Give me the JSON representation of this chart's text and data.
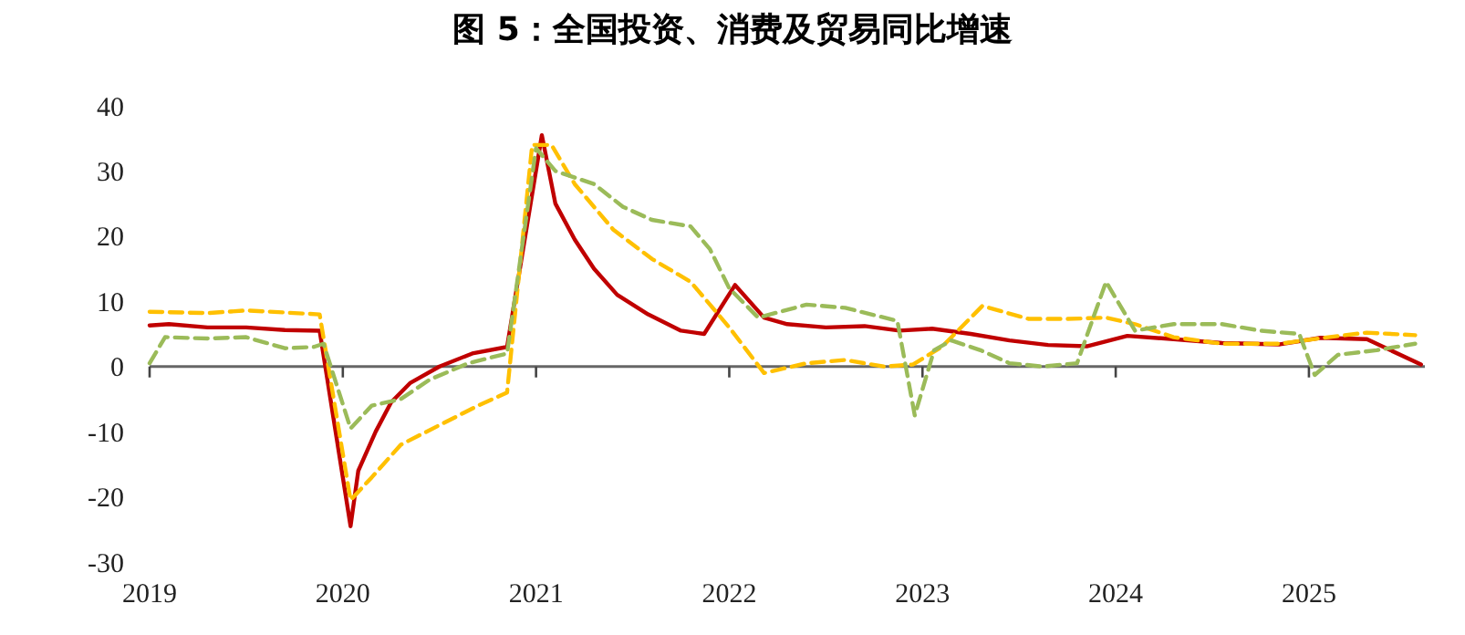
{
  "chart_data": {
    "type": "line",
    "title": "图 5：全国投资、消费及贸易同比增速",
    "xlim": [
      2019,
      2025.6
    ],
    "xticks": [
      2019,
      2020,
      2021,
      2022,
      2023,
      2024,
      2025
    ],
    "ylim": [
      -30,
      40
    ],
    "yticks": [
      -30,
      -20,
      -10,
      0,
      10,
      20,
      30,
      40
    ],
    "series": [
      {
        "color": "#c00000",
        "line_style": "solid",
        "x": [
          2019.0,
          2019.1,
          2019.3,
          2019.5,
          2019.7,
          2019.88,
          2020.04,
          2020.08,
          2020.17,
          2020.25,
          2020.35,
          2020.5,
          2020.67,
          2020.85,
          2021.03,
          2021.1,
          2021.2,
          2021.3,
          2021.42,
          2021.58,
          2021.75,
          2021.87,
          2022.03,
          2022.18,
          2022.3,
          2022.5,
          2022.7,
          2022.88,
          2023.05,
          2023.25,
          2023.45,
          2023.65,
          2023.85,
          2024.06,
          2024.3,
          2024.55,
          2024.85,
          2025.06,
          2025.3,
          2025.58
        ],
        "values": [
          6.3,
          6.5,
          6,
          6,
          5.6,
          5.5,
          -24.5,
          -16,
          -10,
          -5.5,
          -2.5,
          0,
          2,
          3,
          35.5,
          25,
          19.5,
          15,
          11,
          8,
          5.5,
          5,
          12.5,
          7.5,
          6.5,
          6,
          6.2,
          5.5,
          5.8,
          5,
          4,
          3.3,
          3.1,
          4.7,
          4.2,
          3.6,
          3.4,
          4.4,
          4.2,
          0.3
        ]
      },
      {
        "color": "#ffc000",
        "line_style": "dashed",
        "x": [
          2019.0,
          2019.3,
          2019.5,
          2019.88,
          2020.04,
          2020.15,
          2020.3,
          2020.5,
          2020.7,
          2020.85,
          2020.98,
          2021.08,
          2021.2,
          2021.4,
          2021.6,
          2021.8,
          2022.0,
          2022.18,
          2022.4,
          2022.6,
          2022.8,
          2022.95,
          2023.1,
          2023.31,
          2023.55,
          2023.75,
          2023.95,
          2024.1,
          2024.3,
          2024.55,
          2024.85,
          2025.1,
          2025.3,
          2025.55
        ],
        "values": [
          8.4,
          8.2,
          8.6,
          8,
          -20.5,
          -17,
          -12,
          -9,
          -6,
          -4,
          34,
          34,
          28,
          21,
          16.5,
          13,
          6,
          -1,
          0.5,
          1,
          0,
          0.3,
          3,
          9.3,
          7.3,
          7.3,
          7.5,
          6.5,
          4.5,
          3.5,
          3.5,
          4.5,
          5.2,
          4.8
        ]
      },
      {
        "color": "#9bbb59",
        "line_style": "dashed",
        "x": [
          2019.0,
          2019.08,
          2019.3,
          2019.5,
          2019.7,
          2019.85,
          2019.9,
          2020.04,
          2020.15,
          2020.3,
          2020.45,
          2020.65,
          2020.85,
          2021.0,
          2021.1,
          2021.3,
          2021.45,
          2021.6,
          2021.8,
          2021.9,
          2022.0,
          2022.15,
          2022.4,
          2022.6,
          2022.87,
          2022.96,
          2023.06,
          2023.15,
          2023.3,
          2023.45,
          2023.62,
          2023.8,
          2023.95,
          2024.1,
          2024.3,
          2024.55,
          2024.75,
          2024.95,
          2025.03,
          2025.15,
          2025.35,
          2025.55
        ],
        "values": [
          0.5,
          4.5,
          4.3,
          4.5,
          2.8,
          3,
          3.5,
          -9.5,
          -6,
          -5,
          -2,
          0.5,
          2,
          33.5,
          30,
          28,
          24.5,
          22.5,
          21.5,
          18,
          12,
          7.5,
          9.5,
          9,
          7,
          -7.5,
          2.5,
          4,
          2.5,
          0.5,
          0,
          0.5,
          13,
          5.5,
          6.5,
          6.5,
          5.5,
          5,
          -1.3,
          1.8,
          2.5,
          3.5
        ]
      }
    ]
  }
}
